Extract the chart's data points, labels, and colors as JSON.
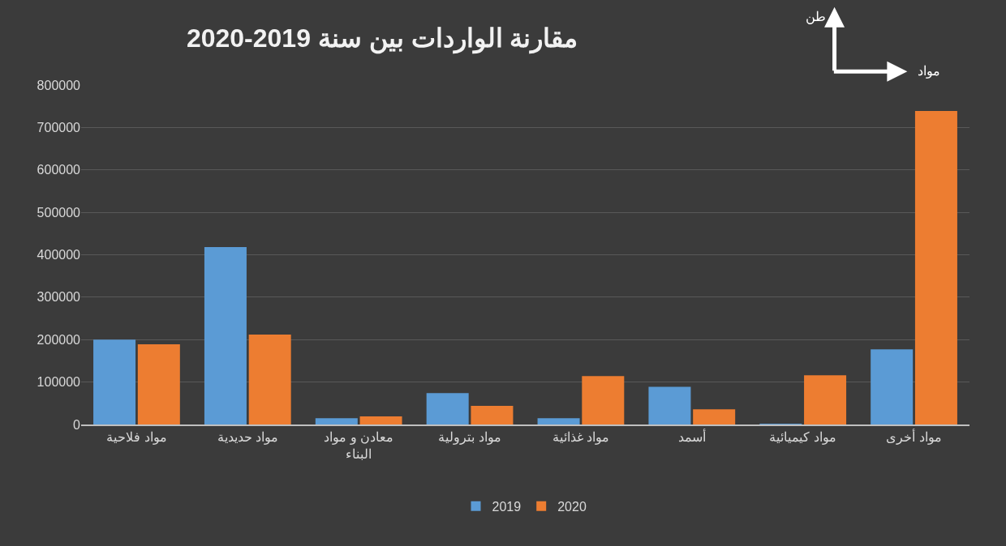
{
  "chart_data": {
    "type": "bar",
    "title": "مقارنة الواردات بين سنة 2019-2020",
    "xlabel": "مواد",
    "ylabel": "طن",
    "categories": [
      "مواد فلاحية",
      "مواد حديدية",
      "معادن و مواد البناء",
      "مواد بترولية",
      "مواد غذائية",
      "أسمد",
      "مواد كيميائية",
      "مواد أخرى"
    ],
    "series": [
      {
        "name": "2019",
        "color": "#5b9bd5",
        "values": [
          200000,
          418000,
          15000,
          74000,
          15000,
          89000,
          1000,
          177000
        ]
      },
      {
        "name": "2020",
        "color": "#ed7d31",
        "values": [
          189000,
          212000,
          19000,
          44000,
          114000,
          36000,
          116000,
          739000
        ]
      }
    ],
    "ylim": [
      0,
      800000
    ],
    "yticks": [
      0,
      100000,
      200000,
      300000,
      400000,
      500000,
      600000,
      700000,
      800000
    ],
    "grid": "y",
    "legend": "bottom"
  }
}
